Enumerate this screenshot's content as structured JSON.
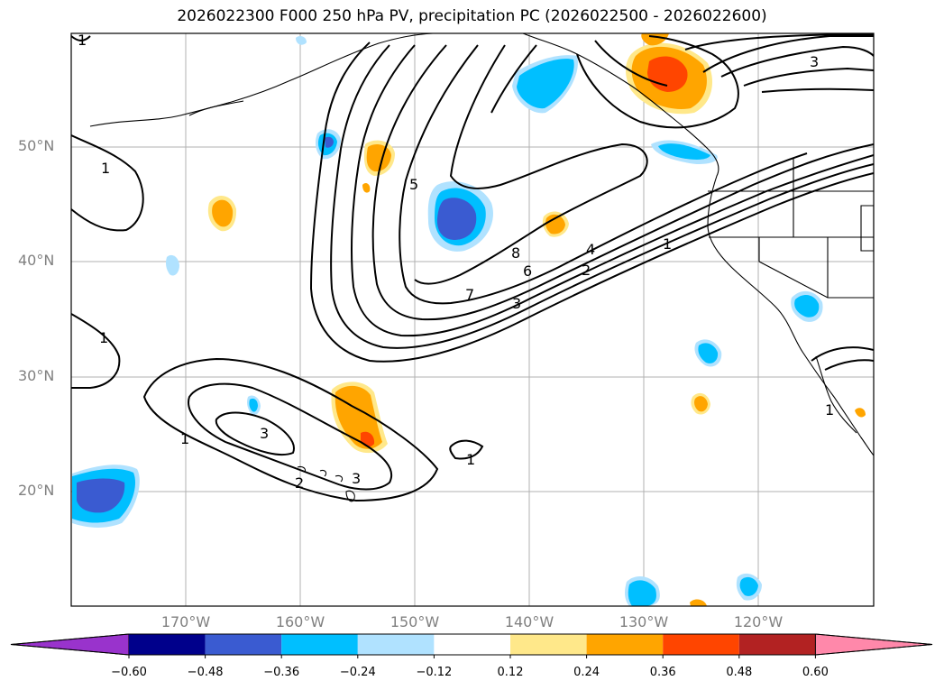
{
  "title": "2026022300 F000 250 hPa PV, precipitation PC (2026022500 - 2026022600)",
  "lat_labels": [
    "50°N",
    "40°N",
    "30°N",
    "20°N"
  ],
  "lon_labels": [
    "170°W",
    "160°W",
    "150°W",
    "140°W",
    "130°W",
    "120°W"
  ],
  "colorbar": {
    "colors": [
      "#9933cc",
      "#00008b",
      "#3a5bd1",
      "#00bfff",
      "#b0e2ff",
      "#ffffff",
      "#ffe88a",
      "#ffa500",
      "#ff4500",
      "#b22222",
      "#ff88aa"
    ],
    "ticks": [
      "−0.60",
      "−0.48",
      "−0.36",
      "−0.24",
      "−0.12",
      "0.12",
      "0.24",
      "0.36",
      "0.48",
      "0.60"
    ]
  },
  "contour_labels": [
    "1",
    "1",
    "1",
    "1",
    "1",
    "1",
    "1",
    "2",
    "2",
    "3",
    "3",
    "3",
    "3",
    "4",
    "5",
    "6",
    "7",
    "8"
  ]
}
